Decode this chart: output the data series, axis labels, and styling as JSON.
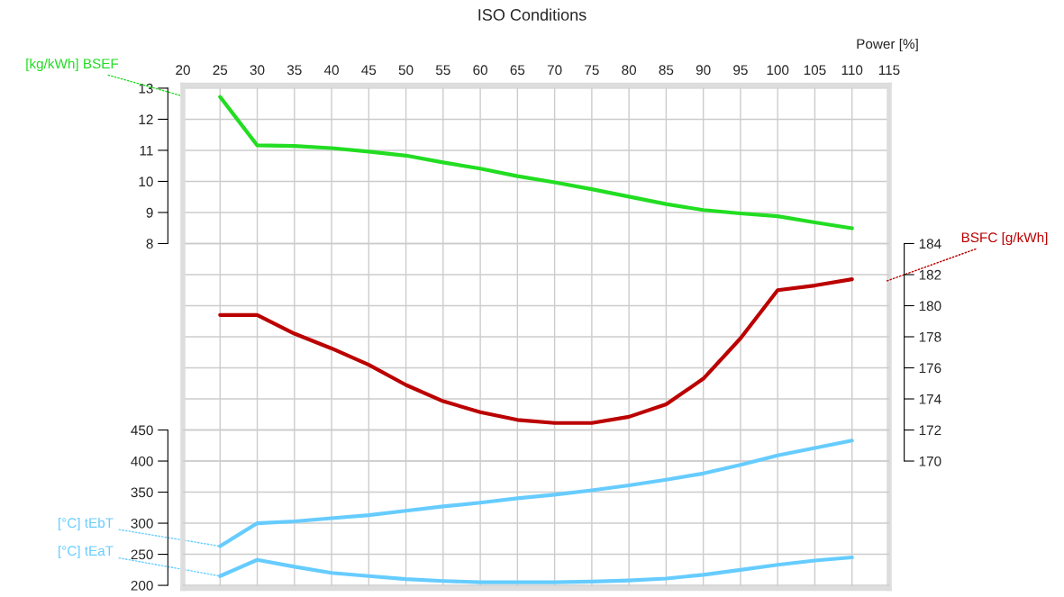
{
  "chart_data": {
    "type": "line",
    "title": "ISO Conditions",
    "xlabel": "Power [%]",
    "x": [
      25,
      30,
      35,
      40,
      45,
      50,
      55,
      60,
      65,
      70,
      75,
      80,
      85,
      90,
      95,
      100,
      105,
      110
    ],
    "xlim": [
      20,
      115
    ],
    "xticks": [
      20,
      25,
      30,
      35,
      40,
      45,
      50,
      55,
      60,
      65,
      70,
      75,
      80,
      85,
      90,
      95,
      100,
      105,
      110,
      115
    ],
    "ylim": [
      -3.1,
      13.1
    ],
    "yticks": [
      8,
      9,
      10,
      11,
      12,
      13
    ],
    "y2lim": [
      161.8,
      194.2
    ],
    "y2ticks": [
      170,
      172,
      174,
      176,
      178,
      180,
      182,
      184
    ],
    "y3lim": [
      195,
      1005
    ],
    "y3ticks": [
      200,
      250,
      300,
      350,
      400,
      450
    ],
    "grid": true,
    "legend": false,
    "marker": "none",
    "line_style": "solid",
    "series": [
      {
        "name": "[kg/kWh] BSEF",
        "color": "#22dd22",
        "axis": "y",
        "values": [
          12.72,
          11.16,
          11.14,
          11.07,
          10.96,
          10.83,
          10.61,
          10.41,
          10.17,
          9.97,
          9.75,
          9.51,
          9.27,
          9.08,
          8.97,
          8.88,
          8.68,
          8.49
        ]
      },
      {
        "name": "BSFC [g/kWh]",
        "color": "#bb0000",
        "axis": "y2",
        "values": [
          179.4,
          179.4,
          178.2,
          177.25,
          176.2,
          174.9,
          173.85,
          173.15,
          172.65,
          172.45,
          172.45,
          172.85,
          173.65,
          175.3,
          177.9,
          181.0,
          181.3,
          181.7
        ]
      },
      {
        "name": "[°C] tEbT",
        "color": "#66ccff",
        "axis": "y3",
        "values": [
          263,
          300,
          303,
          308,
          313,
          320,
          327,
          333,
          340,
          346,
          353,
          361,
          370,
          380,
          394,
          409,
          421,
          433
        ]
      },
      {
        "name": "[°C] tEaT",
        "color": "#66ccff",
        "axis": "y3",
        "values": [
          215,
          241,
          230,
          220,
          215,
          210,
          207,
          205,
          205,
          205,
          206,
          208,
          211,
          217,
          225,
          233,
          240,
          245
        ]
      }
    ]
  }
}
